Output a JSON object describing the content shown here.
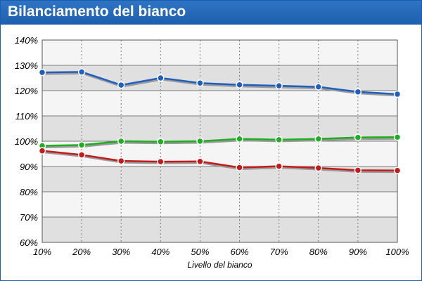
{
  "title": "Bilanciamento del bianco",
  "chart_data": {
    "type": "line",
    "title": "Bilanciamento del bianco",
    "xlabel": "Livello del bianco",
    "ylabel": "",
    "categories": [
      "10%",
      "20%",
      "30%",
      "40%",
      "50%",
      "60%",
      "70%",
      "80%",
      "90%",
      "100%"
    ],
    "yticks": [
      "60%",
      "70%",
      "80%",
      "90%",
      "100%",
      "110%",
      "120%",
      "130%",
      "140%"
    ],
    "ylim": [
      60,
      140
    ],
    "grid": true,
    "legend": "none",
    "series": [
      {
        "color": "#1f5fbf",
        "values": [
          127.2,
          127.4,
          122.2,
          125.0,
          123.0,
          122.3,
          121.9,
          121.5,
          119.5,
          118.6
        ]
      },
      {
        "color": "#1fae1f",
        "values": [
          98.2,
          98.5,
          100.0,
          99.8,
          100.0,
          100.9,
          100.6,
          100.9,
          101.5,
          101.6
        ]
      },
      {
        "color": "#c41a1a",
        "values": [
          96.2,
          94.6,
          92.2,
          91.9,
          92.0,
          89.6,
          90.1,
          89.4,
          88.5,
          88.4
        ]
      }
    ]
  }
}
